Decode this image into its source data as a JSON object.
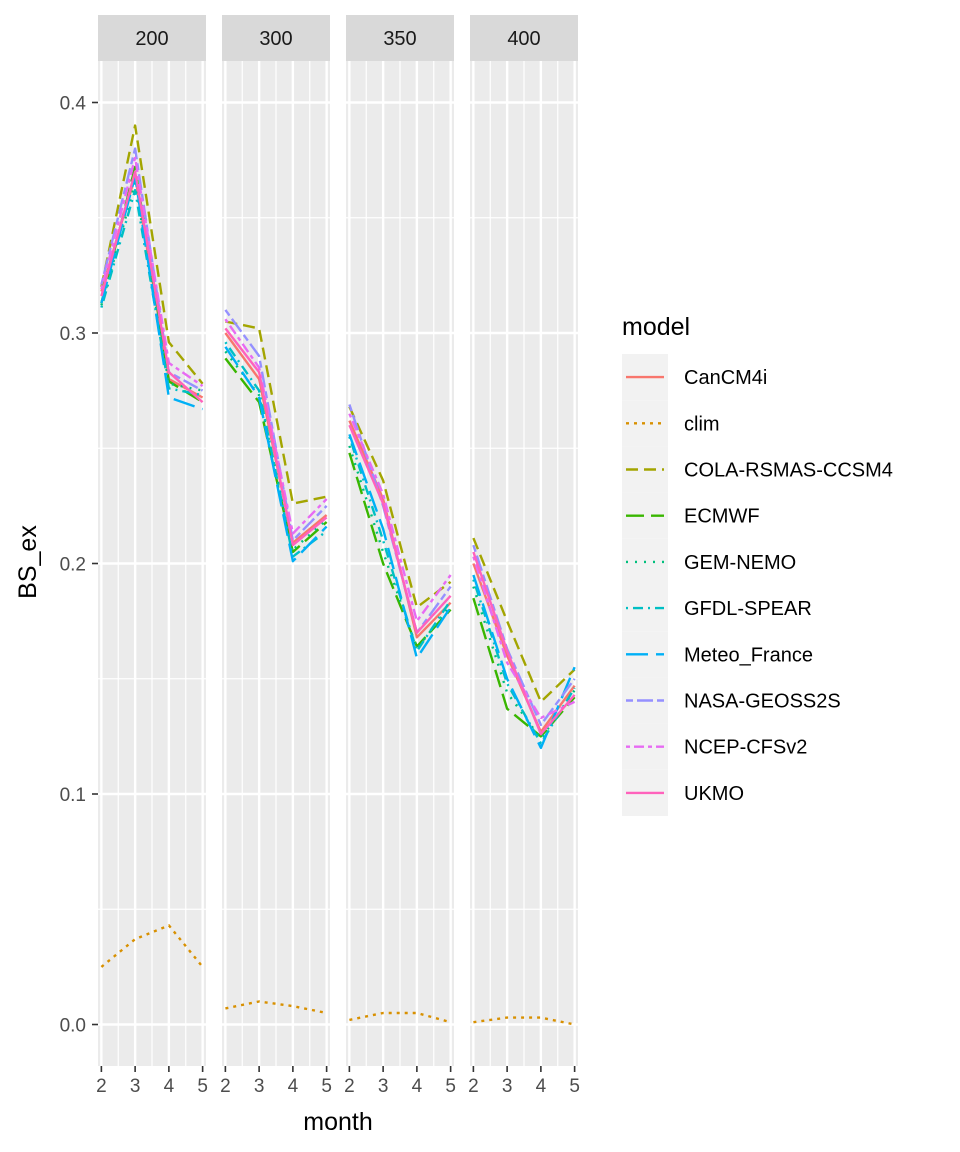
{
  "chart_data": {
    "type": "line",
    "xlabel": "month",
    "ylabel": "BS_ex",
    "x_ticks": [
      2,
      3,
      4,
      5
    ],
    "xlim": [
      1.9,
      5.1
    ],
    "ylim": [
      -0.018,
      0.418
    ],
    "y_ticks": [
      0.0,
      0.1,
      0.2,
      0.3,
      0.4
    ],
    "y_tick_labels": [
      "0.0",
      "0.1",
      "0.2",
      "0.3",
      "0.4"
    ],
    "grid": true,
    "legend": {
      "title": "model",
      "placement": "right"
    },
    "series": [
      {
        "name": "CanCM4i",
        "color": "#F8766D",
        "dash": "solid"
      },
      {
        "name": "clim",
        "color": "#D89000",
        "dash": "dotted-short"
      },
      {
        "name": "COLA-RSMAS-CCSM4",
        "color": "#A3A500",
        "dash": "dashed"
      },
      {
        "name": "ECMWF",
        "color": "#39B600",
        "dash": "longdash"
      },
      {
        "name": "GEM-NEMO",
        "color": "#00BF7D",
        "dash": "dotted"
      },
      {
        "name": "GFDL-SPEAR",
        "color": "#00BFC4",
        "dash": "dotdash"
      },
      {
        "name": "Meteo_France",
        "color": "#00B0F6",
        "dash": "longdash-wide"
      },
      {
        "name": "NASA-GEOSS2S",
        "color": "#9590FF",
        "dash": "twodash"
      },
      {
        "name": "NCEP-CFSv2",
        "color": "#E76BF3",
        "dash": "dotted-dash"
      },
      {
        "name": "UKMO",
        "color": "#FF62BC",
        "dash": "solid"
      }
    ],
    "panels": [
      {
        "label": "200",
        "values": {
          "CanCM4i": [
            0.318,
            0.368,
            0.28,
            0.272
          ],
          "clim": [
            0.025,
            0.037,
            0.043,
            0.025
          ],
          "COLA-RSMAS-CCSM4": [
            0.32,
            0.39,
            0.296,
            0.278
          ],
          "ECMWF": [
            0.313,
            0.372,
            0.279,
            0.27
          ],
          "GEM-NEMO": [
            0.312,
            0.365,
            0.278,
            0.275
          ],
          "GFDL-SPEAR": [
            0.311,
            0.362,
            0.276,
            0.273
          ],
          "Meteo_France": [
            0.313,
            0.368,
            0.272,
            0.267
          ],
          "NASA-GEOSS2S": [
            0.321,
            0.38,
            0.283,
            0.275
          ],
          "NCEP-CFSv2": [
            0.319,
            0.376,
            0.287,
            0.277
          ],
          "UKMO": [
            0.316,
            0.37,
            0.283,
            0.27
          ]
        }
      },
      {
        "label": "300",
        "values": {
          "CanCM4i": [
            0.3,
            0.28,
            0.209,
            0.221
          ],
          "clim": [
            0.007,
            0.01,
            0.008,
            0.005
          ],
          "COLA-RSMAS-CCSM4": [
            0.305,
            0.302,
            0.226,
            0.229
          ],
          "ECMWF": [
            0.289,
            0.27,
            0.205,
            0.218
          ],
          "GEM-NEMO": [
            0.292,
            0.273,
            0.206,
            0.219
          ],
          "GFDL-SPEAR": [
            0.296,
            0.275,
            0.203,
            0.214
          ],
          "Meteo_France": [
            0.294,
            0.272,
            0.201,
            0.216
          ],
          "NASA-GEOSS2S": [
            0.31,
            0.29,
            0.21,
            0.225
          ],
          "NCEP-CFSv2": [
            0.306,
            0.285,
            0.213,
            0.228
          ],
          "UKMO": [
            0.302,
            0.283,
            0.208,
            0.22
          ]
        }
      },
      {
        "label": "350",
        "values": {
          "CanCM4i": [
            0.262,
            0.228,
            0.168,
            0.183
          ],
          "clim": [
            0.002,
            0.005,
            0.005,
            0.001
          ],
          "COLA-RSMAS-CCSM4": [
            0.268,
            0.236,
            0.181,
            0.192
          ],
          "ECMWF": [
            0.248,
            0.2,
            0.164,
            0.18
          ],
          "GEM-NEMO": [
            0.251,
            0.205,
            0.163,
            0.182
          ],
          "GFDL-SPEAR": [
            0.255,
            0.21,
            0.162,
            0.184
          ],
          "Meteo_France": [
            0.256,
            0.215,
            0.159,
            0.181
          ],
          "NASA-GEOSS2S": [
            0.269,
            0.225,
            0.17,
            0.19
          ],
          "NCEP-CFSv2": [
            0.265,
            0.23,
            0.175,
            0.195
          ],
          "UKMO": [
            0.26,
            0.226,
            0.17,
            0.186
          ]
        }
      },
      {
        "label": "400",
        "values": {
          "CanCM4i": [
            0.2,
            0.16,
            0.127,
            0.147
          ],
          "clim": [
            0.001,
            0.003,
            0.003,
            0.0
          ],
          "COLA-RSMAS-CCSM4": [
            0.211,
            0.175,
            0.14,
            0.154
          ],
          "ECMWF": [
            0.185,
            0.137,
            0.125,
            0.142
          ],
          "GEM-NEMO": [
            0.19,
            0.144,
            0.124,
            0.145
          ],
          "GFDL-SPEAR": [
            0.193,
            0.148,
            0.122,
            0.146
          ],
          "Meteo_France": [
            0.195,
            0.15,
            0.12,
            0.155
          ],
          "NASA-GEOSS2S": [
            0.208,
            0.163,
            0.13,
            0.15
          ],
          "NCEP-CFSv2": [
            0.203,
            0.157,
            0.133,
            0.14
          ],
          "UKMO": [
            0.205,
            0.162,
            0.126,
            0.143
          ]
        }
      }
    ]
  }
}
